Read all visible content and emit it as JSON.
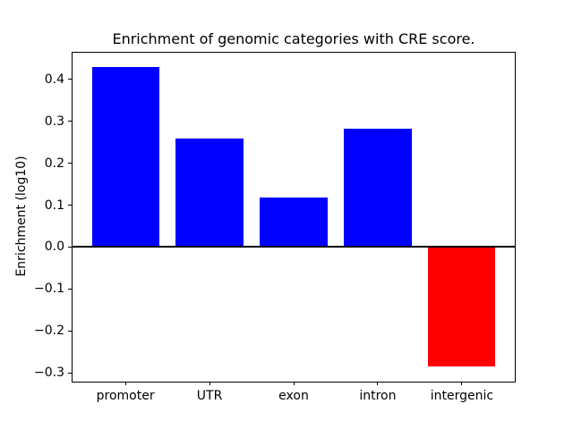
{
  "chart_data": {
    "type": "bar",
    "title": "Enrichment of genomic categories with CRE score.",
    "xlabel": "",
    "ylabel": "Enrichment (log10)",
    "categories": [
      "promoter",
      "UTR",
      "exon",
      "intron",
      "intergenic"
    ],
    "values": [
      0.43,
      0.26,
      0.118,
      0.282,
      -0.284
    ],
    "bar_colors": [
      "#0000ff",
      "#0000ff",
      "#0000ff",
      "#0000ff",
      "#ff0000"
    ],
    "positive_color": "#0000ff",
    "negative_color": "#ff0000",
    "bar_width": 0.8,
    "xlim": [
      -0.64,
      4.64
    ],
    "ylim": [
      -0.321,
      0.466
    ],
    "yticks": [
      -0.3,
      -0.2,
      -0.1,
      0.0,
      0.1,
      0.2,
      0.3,
      0.4
    ],
    "ytick_labels": [
      "−0.3",
      "−0.2",
      "−0.1",
      "0.0",
      "0.1",
      "0.2",
      "0.3",
      "0.4"
    ],
    "zero_line": true,
    "zero_line_color": "#000000",
    "spine_color": "#000000",
    "grid": false,
    "legend": null
  }
}
